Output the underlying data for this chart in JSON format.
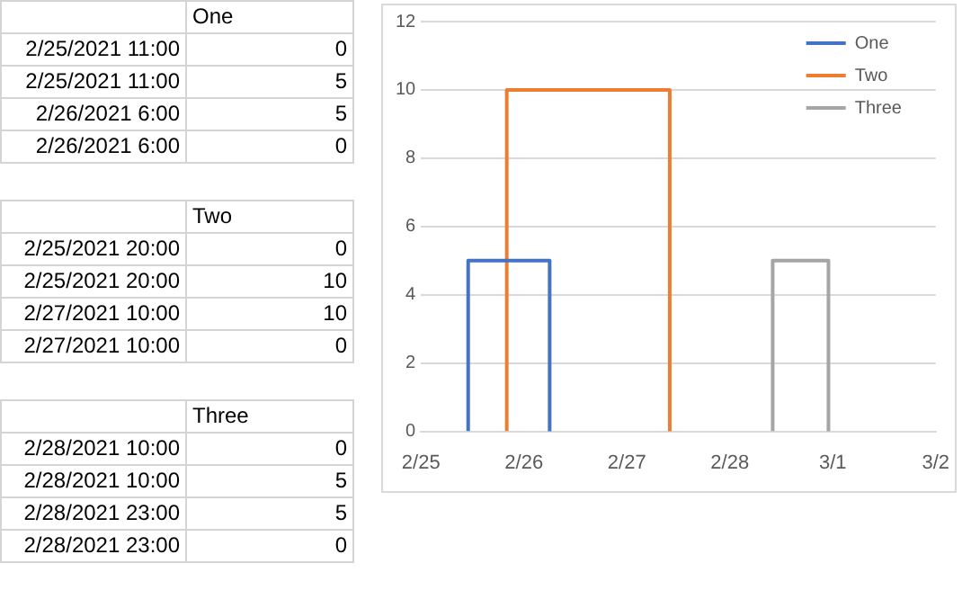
{
  "chart_data": [
    {
      "type": "other",
      "data_labels": true,
      "categories": [
        "2/25/2021 11:00",
        "2/25/2021 11:00",
        "2/26/2021 6:00",
        "2/26/2021 6:00"
      ],
      "series": [
        {
          "name": "One",
          "values": [
            0,
            5,
            5,
            0
          ]
        }
      ]
    },
    {
      "type": "other",
      "data_labels": true,
      "categories": [
        "2/25/2021 20:00",
        "2/25/2021 20:00",
        "2/27/2021 10:00",
        "2/27/2021 10:00"
      ],
      "series": [
        {
          "name": "Two",
          "values": [
            0,
            10,
            10,
            0
          ]
        }
      ]
    },
    {
      "type": "other",
      "data_labels": true,
      "categories": [
        "2/28/2021 10:00",
        "2/28/2021 10:00",
        "2/28/2021 23:00",
        "2/28/2021 23:00"
      ],
      "series": [
        {
          "name": "Three",
          "values": [
            0,
            5,
            5,
            0
          ]
        }
      ]
    },
    {
      "type": "line",
      "marker": "none",
      "line_style": "solid",
      "grid": "y",
      "legend": "top right",
      "xlim": [
        "2021-02-25",
        "2021-03-02"
      ],
      "xticks": [
        {
          "value": "2021-02-25",
          "label": "2/25"
        },
        {
          "value": "2021-02-26",
          "label": "2/26"
        },
        {
          "value": "2021-02-27",
          "label": "2/27"
        },
        {
          "value": "2021-02-28",
          "label": "2/28"
        },
        {
          "value": "2021-03-01",
          "label": "3/1"
        },
        {
          "value": "2021-03-02",
          "label": "3/2"
        }
      ],
      "ylim": [
        0,
        12
      ],
      "yticks": [
        0,
        2,
        4,
        6,
        8,
        10,
        12
      ],
      "series": [
        {
          "name": "One",
          "color": "#4472c4",
          "x": [
            "2021-02-25T11:00",
            "2021-02-25T11:00",
            "2021-02-26T06:00",
            "2021-02-26T06:00"
          ],
          "values": [
            0,
            5,
            5,
            0
          ]
        },
        {
          "name": "Two",
          "color": "#ed7d31",
          "x": [
            "2021-02-25T20:00",
            "2021-02-25T20:00",
            "2021-02-27T10:00",
            "2021-02-27T10:00"
          ],
          "values": [
            0,
            10,
            10,
            0
          ]
        },
        {
          "name": "Three",
          "color": "#a5a5a5",
          "x": [
            "2021-02-28T10:00",
            "2021-02-28T10:00",
            "2021-02-28T23:00",
            "2021-02-28T23:00"
          ],
          "values": [
            0,
            5,
            5,
            0
          ]
        }
      ]
    }
  ]
}
